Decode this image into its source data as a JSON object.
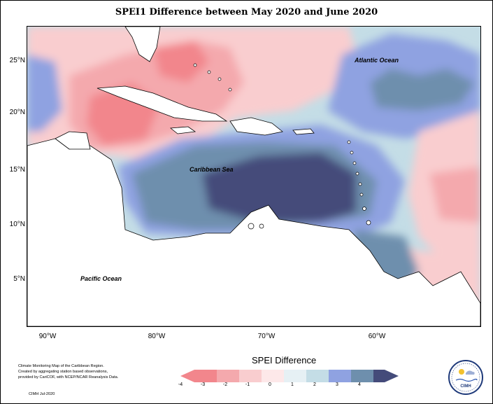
{
  "title": "SPEI1 Difference between May 2020 and June 2020",
  "map": {
    "lat_labels": [
      "25°N",
      "20°N",
      "15°N",
      "10°N",
      "5°N"
    ],
    "lon_labels": [
      "90°W",
      "80°W",
      "70°W",
      "60°W"
    ],
    "ocean_labels": {
      "atlantic": "Atlantic Ocean",
      "caribbean": "Caribbean Sea",
      "pacific": "Pacific Ocean"
    }
  },
  "legend": {
    "title": "SPEI Difference",
    "ticks": [
      "-4",
      "-3",
      "-2",
      "-1",
      "0",
      "1",
      "2",
      "3",
      "4"
    ],
    "colors": [
      "#f2868c",
      "#f4a9ad",
      "#f9cdcf",
      "#fde8e9",
      "#e6f0f4",
      "#c4dde6",
      "#8fa2e1",
      "#6e8fad",
      "#444b7a"
    ]
  },
  "credits": {
    "line1": "Climate Monitoring Map of the Caribbean Region.",
    "line2": "Created by aggregating station based observations,",
    "line3": "provided by CariCOF, with NCEP/NCAR Reanalysis Data.",
    "line4": "CIMH  Jul-2020"
  },
  "logo": {
    "text": "CIMH"
  }
}
